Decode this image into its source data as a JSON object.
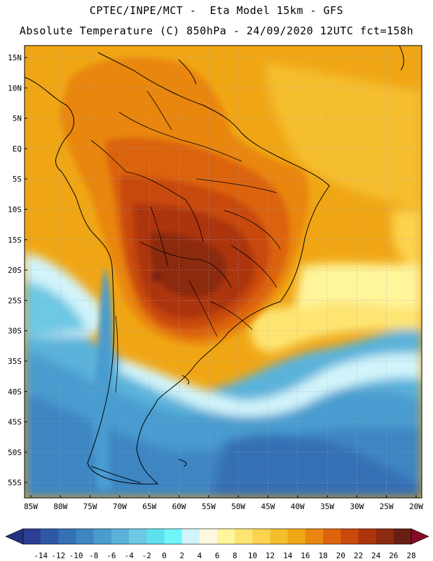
{
  "header": {
    "line1": "CPTEC/INPE/MCT -  Eta Model 15km - GFS",
    "line2": "Absolute Temperature (C) 850hPa - 24/09/2020 12UTC fct=158h"
  },
  "map": {
    "lat_labels": [
      "15N",
      "10N",
      "5N",
      "EQ",
      "5S",
      "10S",
      "15S",
      "20S",
      "25S",
      "30S",
      "35S",
      "40S",
      "45S",
      "50S",
      "55S"
    ],
    "lon_labels": [
      "85W",
      "80W",
      "75W",
      "70W",
      "65W",
      "60W",
      "55W",
      "50W",
      "45W",
      "40W",
      "35W",
      "30W",
      "25W",
      "20W"
    ]
  },
  "colorbar": {
    "ticks": [
      "-14",
      "-12",
      "-10",
      "-8",
      "-6",
      "-4",
      "-2",
      "0",
      "2",
      "4",
      "6",
      "8",
      "10",
      "12",
      "14",
      "16",
      "18",
      "20",
      "22",
      "24",
      "26",
      "28"
    ],
    "colors": [
      "#2b3f94",
      "#2f58a4",
      "#3470b4",
      "#3d86c2",
      "#4a9ccf",
      "#5ab2da",
      "#6cc8e4",
      "#5fe0ee",
      "#6ff6fb",
      "#d2f4fb",
      "#fff8e0",
      "#fff59a",
      "#fee572",
      "#fbd34e",
      "#f5be2d",
      "#f0a614",
      "#e9860f",
      "#dc640c",
      "#c84a0a",
      "#ad340a",
      "#8c2a10",
      "#6b1e14"
    ],
    "min_color": "#223382",
    "max_color": "#8a0a2a"
  }
}
